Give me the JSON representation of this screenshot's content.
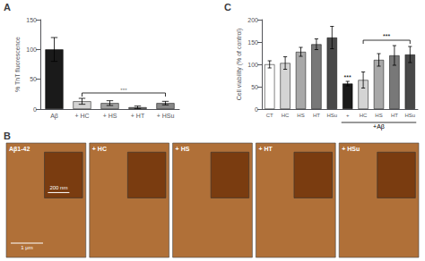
{
  "chart_data": [
    {
      "type": "bar",
      "title": "A",
      "categories": [
        "Aβ",
        "+ HC",
        "+ HS",
        "+ HT",
        "+ HSu"
      ],
      "values": [
        100,
        13,
        10,
        3,
        10
      ],
      "errors": [
        20,
        5,
        4,
        2,
        3
      ],
      "colors": [
        "#1a1a1a",
        "#d4d4d4",
        "#a0a0a0",
        "#707070",
        "#888888"
      ],
      "ylabel": "% ThT fluorescence",
      "ylim": [
        0,
        150
      ],
      "yticks": [
        0,
        50,
        100,
        150
      ],
      "annotations": [
        "◦◦◦"
      ],
      "grid": false
    },
    {
      "type": "bar",
      "title": "C",
      "categories": [
        "CT",
        "HC",
        "HS",
        "HT",
        "HSu",
        "+",
        "HC",
        "HS",
        "HT",
        "HSu"
      ],
      "values": [
        100,
        103,
        128,
        145,
        160,
        57,
        65,
        110,
        120,
        122
      ],
      "errors": [
        8,
        14,
        10,
        12,
        25,
        5,
        18,
        14,
        22,
        18
      ],
      "colors": [
        "#ffffff",
        "#d4d4d4",
        "#a8a8a8",
        "#787878",
        "#484848",
        "#1a1a1a",
        "#d4d4d4",
        "#a8a8a8",
        "#787878",
        "#484848"
      ],
      "ylabel": "Cell viability (% of control)",
      "ylim": [
        0,
        200
      ],
      "yticks": [
        0,
        50,
        100,
        150,
        200
      ],
      "annotations": [
        "***",
        "***",
        "+Aβ"
      ],
      "grid": false
    },
    {
      "type": "image",
      "title": "B",
      "categories": [
        "Aβ1-42",
        "+ HC",
        "+ HS",
        "+ HT",
        "+ HSu"
      ],
      "colors": [
        "#b07038",
        "#7a3c10"
      ],
      "annotations": [
        "1 μm",
        "200 nm"
      ]
    }
  ]
}
